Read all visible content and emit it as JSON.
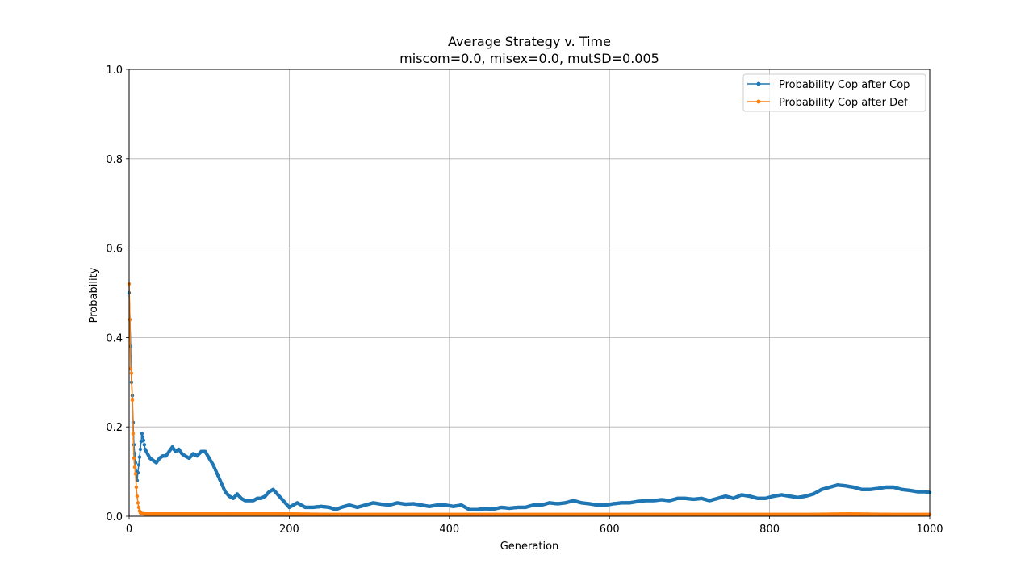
{
  "chart_data": {
    "type": "line",
    "title": "Average Strategy v. Time",
    "subtitle": "miscom=0.0, misex=0.0, mutSD=0.005",
    "xlabel": "Generation",
    "ylabel": "Probability",
    "xlim": [
      0,
      1000
    ],
    "ylim": [
      0,
      1.0
    ],
    "x_ticks": [
      "0",
      "200",
      "400",
      "600",
      "800",
      "1000"
    ],
    "y_ticks": [
      "0.0",
      "0.2",
      "0.4",
      "0.6",
      "0.8",
      "1.0"
    ],
    "grid": true,
    "legend_position": "top-right",
    "markers": "dot",
    "series": [
      {
        "name": "Probability Cop after Cop",
        "color": "#1f77b4",
        "points": [
          [
            0,
            0.5
          ],
          [
            2,
            0.38
          ],
          [
            3,
            0.3
          ],
          [
            4,
            0.27
          ],
          [
            5,
            0.21
          ],
          [
            6,
            0.16
          ],
          [
            8,
            0.12
          ],
          [
            10,
            0.08
          ],
          [
            12,
            0.115
          ],
          [
            14,
            0.15
          ],
          [
            16,
            0.185
          ],
          [
            18,
            0.17
          ],
          [
            20,
            0.15
          ],
          [
            23,
            0.14
          ],
          [
            26,
            0.13
          ],
          [
            30,
            0.125
          ],
          [
            34,
            0.12
          ],
          [
            38,
            0.13
          ],
          [
            42,
            0.135
          ],
          [
            46,
            0.135
          ],
          [
            50,
            0.145
          ],
          [
            54,
            0.155
          ],
          [
            58,
            0.145
          ],
          [
            62,
            0.15
          ],
          [
            66,
            0.14
          ],
          [
            70,
            0.135
          ],
          [
            75,
            0.13
          ],
          [
            80,
            0.14
          ],
          [
            85,
            0.135
          ],
          [
            90,
            0.145
          ],
          [
            95,
            0.145
          ],
          [
            100,
            0.13
          ],
          [
            105,
            0.115
          ],
          [
            110,
            0.095
          ],
          [
            115,
            0.075
          ],
          [
            120,
            0.055
          ],
          [
            125,
            0.045
          ],
          [
            130,
            0.04
          ],
          [
            135,
            0.05
          ],
          [
            140,
            0.04
          ],
          [
            145,
            0.035
          ],
          [
            150,
            0.035
          ],
          [
            155,
            0.035
          ],
          [
            160,
            0.04
          ],
          [
            165,
            0.04
          ],
          [
            170,
            0.045
          ],
          [
            175,
            0.055
          ],
          [
            180,
            0.06
          ],
          [
            185,
            0.05
          ],
          [
            190,
            0.04
          ],
          [
            195,
            0.03
          ],
          [
            200,
            0.02
          ],
          [
            205,
            0.025
          ],
          [
            210,
            0.03
          ],
          [
            215,
            0.025
          ],
          [
            220,
            0.02
          ],
          [
            230,
            0.02
          ],
          [
            240,
            0.022
          ],
          [
            250,
            0.02
          ],
          [
            258,
            0.015
          ],
          [
            265,
            0.02
          ],
          [
            275,
            0.025
          ],
          [
            285,
            0.02
          ],
          [
            295,
            0.025
          ],
          [
            305,
            0.03
          ],
          [
            315,
            0.027
          ],
          [
            325,
            0.025
          ],
          [
            335,
            0.03
          ],
          [
            345,
            0.027
          ],
          [
            355,
            0.028
          ],
          [
            365,
            0.025
          ],
          [
            375,
            0.022
          ],
          [
            385,
            0.025
          ],
          [
            395,
            0.025
          ],
          [
            405,
            0.022
          ],
          [
            415,
            0.025
          ],
          [
            425,
            0.015
          ],
          [
            435,
            0.015
          ],
          [
            445,
            0.017
          ],
          [
            455,
            0.016
          ],
          [
            465,
            0.02
          ],
          [
            475,
            0.018
          ],
          [
            485,
            0.02
          ],
          [
            495,
            0.02
          ],
          [
            505,
            0.025
          ],
          [
            515,
            0.025
          ],
          [
            525,
            0.03
          ],
          [
            535,
            0.028
          ],
          [
            545,
            0.03
          ],
          [
            555,
            0.035
          ],
          [
            565,
            0.03
          ],
          [
            575,
            0.028
          ],
          [
            585,
            0.025
          ],
          [
            595,
            0.025
          ],
          [
            605,
            0.028
          ],
          [
            615,
            0.03
          ],
          [
            625,
            0.03
          ],
          [
            635,
            0.033
          ],
          [
            645,
            0.035
          ],
          [
            655,
            0.035
          ],
          [
            665,
            0.037
          ],
          [
            675,
            0.035
          ],
          [
            685,
            0.04
          ],
          [
            695,
            0.04
          ],
          [
            705,
            0.038
          ],
          [
            715,
            0.04
          ],
          [
            725,
            0.035
          ],
          [
            735,
            0.04
          ],
          [
            745,
            0.045
          ],
          [
            755,
            0.04
          ],
          [
            765,
            0.048
          ],
          [
            775,
            0.045
          ],
          [
            785,
            0.04
          ],
          [
            795,
            0.04
          ],
          [
            805,
            0.045
          ],
          [
            815,
            0.048
          ],
          [
            825,
            0.045
          ],
          [
            835,
            0.042
          ],
          [
            845,
            0.045
          ],
          [
            855,
            0.05
          ],
          [
            865,
            0.06
          ],
          [
            875,
            0.065
          ],
          [
            885,
            0.07
          ],
          [
            895,
            0.068
          ],
          [
            905,
            0.065
          ],
          [
            915,
            0.06
          ],
          [
            925,
            0.06
          ],
          [
            935,
            0.062
          ],
          [
            945,
            0.065
          ],
          [
            955,
            0.065
          ],
          [
            965,
            0.06
          ],
          [
            975,
            0.058
          ],
          [
            985,
            0.055
          ],
          [
            995,
            0.055
          ],
          [
            1000,
            0.053
          ]
        ]
      },
      {
        "name": "Probability Cop after Def",
        "color": "#ff7f0e",
        "points": [
          [
            0,
            0.52
          ],
          [
            1,
            0.44
          ],
          [
            2,
            0.33
          ],
          [
            3,
            0.32
          ],
          [
            4,
            0.26
          ],
          [
            5,
            0.185
          ],
          [
            6,
            0.13
          ],
          [
            7,
            0.11
          ],
          [
            8,
            0.095
          ],
          [
            9,
            0.065
          ],
          [
            10,
            0.045
          ],
          [
            11,
            0.03
          ],
          [
            12,
            0.02
          ],
          [
            13,
            0.012
          ],
          [
            14,
            0.008
          ],
          [
            16,
            0.006
          ],
          [
            20,
            0.005
          ],
          [
            30,
            0.005
          ],
          [
            50,
            0.005
          ],
          [
            75,
            0.005
          ],
          [
            100,
            0.005
          ],
          [
            150,
            0.005
          ],
          [
            200,
            0.005
          ],
          [
            250,
            0.004
          ],
          [
            300,
            0.004
          ],
          [
            350,
            0.004
          ],
          [
            400,
            0.004
          ],
          [
            450,
            0.004
          ],
          [
            500,
            0.004
          ],
          [
            550,
            0.004
          ],
          [
            600,
            0.004
          ],
          [
            650,
            0.004
          ],
          [
            700,
            0.004
          ],
          [
            750,
            0.004
          ],
          [
            800,
            0.004
          ],
          [
            850,
            0.004
          ],
          [
            900,
            0.005
          ],
          [
            950,
            0.004
          ],
          [
            1000,
            0.004
          ]
        ]
      }
    ]
  }
}
